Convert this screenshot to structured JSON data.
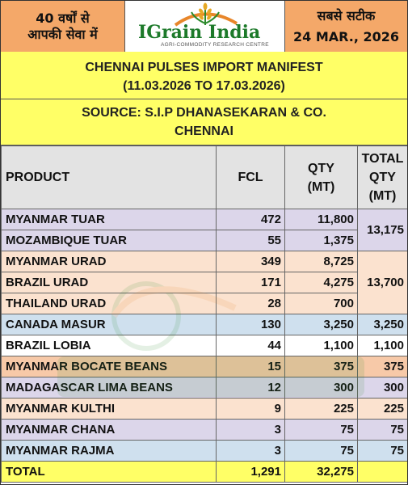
{
  "header": {
    "left_line1": "40 वर्षों से",
    "left_line2": "आपकी सेवा में",
    "logo_text": "IGrain India",
    "logo_subtitle": "AGRI-COMMODITY RESEARCH CENTRE",
    "right_line1": "सबसे सटीक",
    "date": "24 MAR., 2026"
  },
  "title": {
    "line1": "CHENNAI PULSES IMPORT MANIFEST",
    "line2": "(11.03.2026 TO 17.03.2026)",
    "source_line1": "SOURCE: S.I.P DHANASEKARAN & CO.",
    "source_line2": "CHENNAI"
  },
  "columns": {
    "product": "PRODUCT",
    "fcl": "FCL",
    "qty_line1": "QTY",
    "qty_line2": "(MT)",
    "total_line1": "TOTAL",
    "total_line2": "QTY",
    "total_line3": "(MT)"
  },
  "rows": [
    {
      "product": "MYANMAR TUAR",
      "fcl": "472",
      "qty": "11,800"
    },
    {
      "product": "MOZAMBIQUE TUAR",
      "fcl": "55",
      "qty": "1,375"
    },
    {
      "product": "MYANMAR URAD",
      "fcl": "349",
      "qty": "8,725"
    },
    {
      "product": "BRAZIL URAD",
      "fcl": "171",
      "qty": "4,275"
    },
    {
      "product": "THAILAND URAD",
      "fcl": "28",
      "qty": "700"
    },
    {
      "product": "CANADA MASUR",
      "fcl": "130",
      "qty": "3,250",
      "total": "3,250"
    },
    {
      "product": "BRAZIL LOBIA",
      "fcl": "44",
      "qty": "1,100",
      "total": "1,100"
    },
    {
      "product": "MYANMAR BOCATE BEANS",
      "fcl": "15",
      "qty": "375",
      "total": "375"
    },
    {
      "product": "MADAGASCAR LIMA BEANS",
      "fcl": "12",
      "qty": "300",
      "total": "300"
    },
    {
      "product": "MYANMAR KULTHI",
      "fcl": "9",
      "qty": "225",
      "total": "225"
    },
    {
      "product": "MYANMAR CHANA",
      "fcl": "3",
      "qty": "75",
      "total": "75"
    },
    {
      "product": "MYANMAR RAJMA",
      "fcl": "3",
      "qty": "75",
      "total": "75"
    }
  ],
  "group_totals": {
    "tuar": "13,175",
    "urad": "13,700"
  },
  "total_row": {
    "label": "TOTAL",
    "fcl": "1,291",
    "qty": "32,275"
  }
}
